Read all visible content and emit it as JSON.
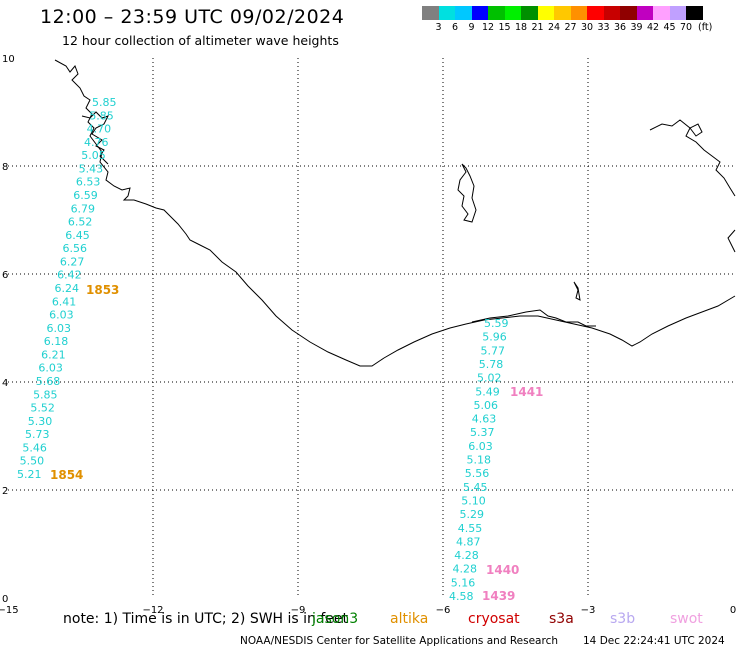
{
  "header": {
    "title": "12:00 – 23:59 UTC 09/02/2024",
    "subtitle": "12 hour collection of altimeter wave heights"
  },
  "colorbar": {
    "colors": [
      "#808080",
      "#00e0e0",
      "#00c8ff",
      "#0000ff",
      "#00c000",
      "#00f000",
      "#009000",
      "#ffff00",
      "#ffc800",
      "#ff9000",
      "#ff0000",
      "#c80000",
      "#900000",
      "#c000c0",
      "#ffa0ff",
      "#c0a0ff",
      "#000000"
    ],
    "labels": [
      "3",
      "6",
      "9",
      "12",
      "15",
      "18",
      "21",
      "24",
      "27",
      "30",
      "33",
      "36",
      "39",
      "42",
      "45",
      "70"
    ],
    "unit": "(ft)"
  },
  "map": {
    "x_ticks": [
      "−15",
      "−12",
      "−9",
      "−6",
      "−3",
      "0"
    ],
    "y_ticks": [
      "0",
      "2",
      "4",
      "6",
      "8",
      "10"
    ],
    "track1": {
      "color": "#20d0d0",
      "values": [
        "5.85",
        "5.85",
        "4.70",
        "4.76",
        "5.05",
        "5.43",
        "6.53",
        "6.59",
        "6.79",
        "6.52",
        "6.45",
        "6.56",
        "6.27",
        "6.42",
        "6.24",
        "6.41",
        "6.03",
        "6.03",
        "6.18",
        "6.21",
        "6.03",
        "5.68",
        "5.85",
        "5.52",
        "5.30",
        "5.73",
        "5.46",
        "5.50",
        "5.21"
      ],
      "time_labels": [
        "1853",
        "1854"
      ],
      "time_label_color": "#e09000"
    },
    "track2": {
      "color": "#20d0d0",
      "values": [
        "5.59",
        "5.96",
        "5.77",
        "5.78",
        "5.02",
        "5.49",
        "5.06",
        "4.63",
        "5.37",
        "6.03",
        "5.18",
        "5.56",
        "5.45",
        "5.10",
        "5.29",
        "4.55",
        "4.87",
        "4.28",
        "4.28",
        "5.16",
        "4.58"
      ],
      "time_labels": [
        "1441",
        "1440",
        "1439"
      ],
      "time_label_color": "#f080c0"
    }
  },
  "legend": {
    "note": "note:  1) Time is in UTC; 2) SWH is in feet",
    "items": [
      {
        "label": "jason3",
        "color": "#008000"
      },
      {
        "label": "altika",
        "color": "#e09000"
      },
      {
        "label": "cryosat",
        "color": "#d00000"
      },
      {
        "label": "s3a",
        "color": "#900000"
      },
      {
        "label": "s3b",
        "color": "#b8a8f0"
      },
      {
        "label": "swot",
        "color": "#f0a0e0"
      }
    ]
  },
  "footer": {
    "credit": "NOAA/NESDIS Center for Satellite Applications and Research",
    "timestamp": "14 Dec 22:24:41 UTC 2024"
  }
}
